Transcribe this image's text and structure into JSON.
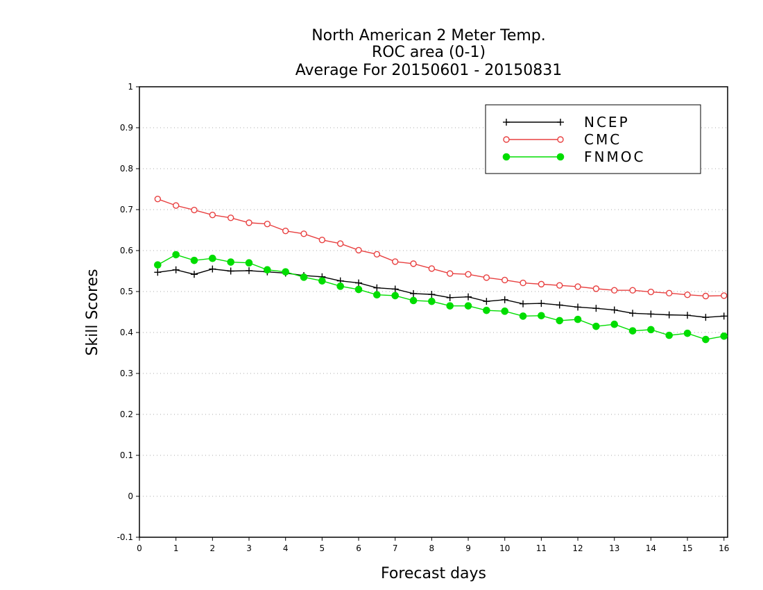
{
  "chart_data": {
    "type": "line",
    "title": "North American 2 Meter Temp.",
    "subtitle_lines": [
      "ROC area (0-1)",
      "Average For 20150601 - 20150831"
    ],
    "xlabel": "Forecast days",
    "ylabel": "Skill Scores",
    "xlim": [
      0,
      16.1
    ],
    "ylim": [
      -0.1,
      1
    ],
    "x_ticks": [
      "0",
      "1",
      "2",
      "3",
      "4",
      "5",
      "6",
      "7",
      "8",
      "9",
      "10",
      "11",
      "12",
      "13",
      "14",
      "15",
      "16"
    ],
    "y_ticks": [
      "-0.1",
      "0",
      "0.1",
      "0.2",
      "0.3",
      "0.4",
      "0.5",
      "0.6",
      "0.7",
      "0.8",
      "0.9",
      "1"
    ],
    "grid": "horizontal dotted",
    "legend_position": "top-right",
    "x": [
      0.5,
      1,
      1.5,
      2,
      2.5,
      3,
      3.5,
      4,
      4.5,
      5,
      5.5,
      6,
      6.5,
      7,
      7.5,
      8,
      8.5,
      9,
      9.5,
      10,
      10.5,
      11,
      11.5,
      12,
      12.5,
      13,
      13.5,
      14,
      14.5,
      15,
      15.5,
      16
    ],
    "series": [
      {
        "name": "NCEP",
        "color": "#000000",
        "marker": "plus",
        "values": [
          0.547,
          0.553,
          0.542,
          0.555,
          0.55,
          0.551,
          0.548,
          0.545,
          0.539,
          0.536,
          0.526,
          0.521,
          0.509,
          0.506,
          0.495,
          0.493,
          0.485,
          0.487,
          0.476,
          0.48,
          0.47,
          0.471,
          0.467,
          0.462,
          0.459,
          0.455,
          0.447,
          0.445,
          0.443,
          0.442,
          0.437,
          0.44
        ]
      },
      {
        "name": "CMC",
        "color": "#e84040",
        "marker": "open-circle",
        "values": [
          0.726,
          0.71,
          0.699,
          0.687,
          0.68,
          0.668,
          0.665,
          0.648,
          0.641,
          0.626,
          0.617,
          0.601,
          0.591,
          0.573,
          0.568,
          0.556,
          0.544,
          0.542,
          0.534,
          0.528,
          0.521,
          0.518,
          0.515,
          0.512,
          0.507,
          0.503,
          0.503,
          0.499,
          0.496,
          0.492,
          0.489,
          0.49
        ]
      },
      {
        "name": "FNMOC",
        "color": "#00dd00",
        "marker": "filled-circle",
        "values": [
          0.565,
          0.59,
          0.576,
          0.581,
          0.572,
          0.57,
          0.553,
          0.548,
          0.535,
          0.526,
          0.513,
          0.505,
          0.492,
          0.49,
          0.478,
          0.476,
          0.465,
          0.465,
          0.454,
          0.452,
          0.44,
          0.441,
          0.429,
          0.432,
          0.415,
          0.42,
          0.404,
          0.407,
          0.393,
          0.398,
          0.383,
          0.391
        ]
      }
    ]
  }
}
